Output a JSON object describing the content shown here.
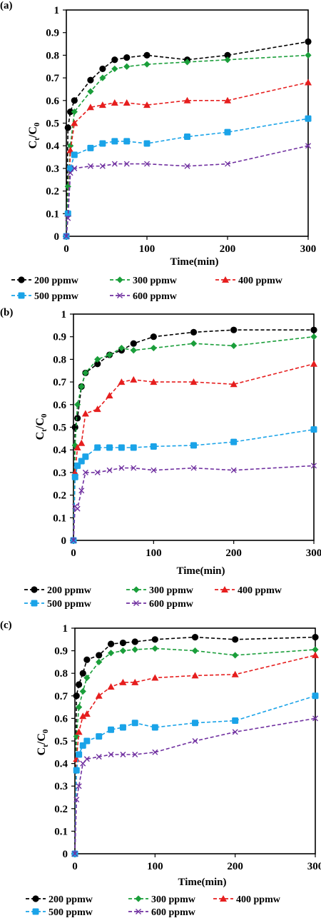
{
  "figure": {
    "panels": [
      {
        "label": "(a)"
      },
      {
        "label": "(b)"
      },
      {
        "label": "(c)"
      }
    ]
  },
  "series_style": [
    {
      "name": "200 ppmw",
      "color": "#000000",
      "marker": "circle"
    },
    {
      "name": "300 ppmw",
      "color": "#1a9e3a",
      "marker": "diamond"
    },
    {
      "name": "400 ppmw",
      "color": "#e61e1e",
      "marker": "triangle"
    },
    {
      "name": "500 ppmw",
      "color": "#1aa3e8",
      "marker": "square-round"
    },
    {
      "name": "600 ppmw",
      "color": "#7030a0",
      "marker": "x"
    }
  ],
  "chart_data": [
    {
      "type": "line",
      "title": "(a)",
      "xlabel": "Time(min)",
      "ylabel": "Ct/C0",
      "xlim": [
        0,
        300
      ],
      "ylim": [
        0,
        1
      ],
      "xticks": [
        0,
        100,
        200,
        300
      ],
      "yticks": [
        0,
        0.1,
        0.2,
        0.3,
        0.4,
        0.5,
        0.6,
        0.7,
        0.8,
        0.9,
        1
      ],
      "grid": false,
      "legend_position": "bottom",
      "series": [
        {
          "name": "200 ppmw",
          "x": [
            0,
            2,
            5,
            10,
            30,
            45,
            60,
            75,
            100,
            150,
            200,
            300
          ],
          "y": [
            0,
            0.48,
            0.55,
            0.6,
            0.69,
            0.74,
            0.78,
            0.79,
            0.8,
            0.78,
            0.8,
            0.86
          ]
        },
        {
          "name": "300 ppmw",
          "x": [
            0,
            2,
            5,
            10,
            30,
            45,
            60,
            75,
            100,
            150,
            200,
            300
          ],
          "y": [
            0,
            0.22,
            0.4,
            0.55,
            0.64,
            0.7,
            0.74,
            0.75,
            0.76,
            0.77,
            0.78,
            0.8
          ]
        },
        {
          "name": "400 ppmw",
          "x": [
            0,
            2,
            5,
            10,
            30,
            45,
            60,
            75,
            100,
            150,
            200,
            300
          ],
          "y": [
            0,
            0.1,
            0.38,
            0.5,
            0.57,
            0.58,
            0.59,
            0.59,
            0.58,
            0.6,
            0.6,
            0.68
          ]
        },
        {
          "name": "500 ppmw",
          "x": [
            0,
            2,
            5,
            10,
            30,
            45,
            60,
            75,
            100,
            150,
            200,
            300
          ],
          "y": [
            0,
            0.1,
            0.3,
            0.36,
            0.39,
            0.41,
            0.42,
            0.42,
            0.41,
            0.44,
            0.46,
            0.52
          ]
        },
        {
          "name": "600 ppmw",
          "x": [
            0,
            2,
            5,
            10,
            30,
            45,
            60,
            75,
            100,
            150,
            200,
            300
          ],
          "y": [
            0,
            0.08,
            0.28,
            0.3,
            0.31,
            0.31,
            0.32,
            0.32,
            0.32,
            0.31,
            0.32,
            0.4
          ]
        }
      ]
    },
    {
      "type": "line",
      "title": "(b)",
      "xlabel": "Time(min)",
      "ylabel": "Ct/C0",
      "xlim": [
        0,
        300
      ],
      "ylim": [
        0,
        1
      ],
      "xticks": [
        0,
        100,
        200,
        300
      ],
      "yticks": [
        0,
        0.1,
        0.2,
        0.3,
        0.4,
        0.5,
        0.6,
        0.7,
        0.8,
        0.9,
        1
      ],
      "grid": false,
      "legend_position": "bottom",
      "series": [
        {
          "name": "200 ppmw",
          "x": [
            0,
            2,
            5,
            10,
            15,
            30,
            45,
            60,
            75,
            100,
            150,
            200,
            300
          ],
          "y": [
            0,
            0.5,
            0.54,
            0.68,
            0.74,
            0.78,
            0.82,
            0.84,
            0.87,
            0.9,
            0.92,
            0.93,
            0.93
          ]
        },
        {
          "name": "300 ppmw",
          "x": [
            0,
            2,
            5,
            10,
            15,
            30,
            45,
            60,
            75,
            100,
            150,
            200,
            300
          ],
          "y": [
            0,
            0.42,
            0.6,
            0.68,
            0.74,
            0.8,
            0.82,
            0.85,
            0.84,
            0.85,
            0.87,
            0.86,
            0.9
          ]
        },
        {
          "name": "400 ppmw",
          "x": [
            0,
            2,
            5,
            10,
            15,
            30,
            45,
            60,
            75,
            100,
            150,
            200,
            300
          ],
          "y": [
            0,
            0.3,
            0.41,
            0.43,
            0.56,
            0.58,
            0.64,
            0.7,
            0.71,
            0.7,
            0.7,
            0.69,
            0.78
          ]
        },
        {
          "name": "500 ppmw",
          "x": [
            0,
            2,
            5,
            10,
            15,
            30,
            45,
            60,
            75,
            100,
            150,
            200,
            300
          ],
          "y": [
            0,
            0.28,
            0.33,
            0.35,
            0.37,
            0.41,
            0.41,
            0.41,
            0.41,
            0.415,
            0.42,
            0.435,
            0.49
          ]
        },
        {
          "name": "600 ppmw",
          "x": [
            0,
            2,
            5,
            10,
            15,
            30,
            45,
            60,
            75,
            100,
            150,
            200,
            300
          ],
          "y": [
            0,
            0.15,
            0.14,
            0.22,
            0.3,
            0.3,
            0.31,
            0.32,
            0.32,
            0.31,
            0.32,
            0.31,
            0.33
          ]
        }
      ]
    },
    {
      "type": "line",
      "title": "(c)",
      "xlabel": "Time(min)",
      "ylabel": "Ct/C0",
      "xlim": [
        0,
        300
      ],
      "ylim": [
        0,
        1
      ],
      "xticks": [
        0,
        100,
        200,
        300
      ],
      "yticks": [
        0,
        0.1,
        0.2,
        0.3,
        0.4,
        0.5,
        0.6,
        0.7,
        0.8,
        0.9,
        1
      ],
      "grid": false,
      "legend_position": "bottom",
      "series": [
        {
          "name": "200 ppmw",
          "x": [
            0,
            2,
            5,
            10,
            15,
            30,
            45,
            60,
            75,
            100,
            150,
            200,
            300
          ],
          "y": [
            0,
            0.7,
            0.75,
            0.8,
            0.86,
            0.88,
            0.93,
            0.935,
            0.94,
            0.95,
            0.96,
            0.95,
            0.96
          ]
        },
        {
          "name": "300 ppmw",
          "x": [
            0,
            2,
            5,
            10,
            15,
            30,
            45,
            60,
            75,
            100,
            150,
            200,
            300
          ],
          "y": [
            0,
            0.52,
            0.65,
            0.72,
            0.78,
            0.85,
            0.89,
            0.9,
            0.905,
            0.91,
            0.9,
            0.88,
            0.905
          ]
        },
        {
          "name": "400 ppmw",
          "x": [
            0,
            2,
            5,
            10,
            15,
            30,
            45,
            60,
            75,
            100,
            150,
            200,
            300
          ],
          "y": [
            0,
            0.42,
            0.54,
            0.61,
            0.62,
            0.7,
            0.74,
            0.76,
            0.76,
            0.78,
            0.79,
            0.795,
            0.88
          ]
        },
        {
          "name": "500 ppmw",
          "x": [
            0,
            2,
            5,
            10,
            15,
            30,
            45,
            60,
            75,
            100,
            150,
            200,
            300
          ],
          "y": [
            0,
            0.37,
            0.44,
            0.48,
            0.5,
            0.52,
            0.55,
            0.56,
            0.58,
            0.56,
            0.58,
            0.59,
            0.7
          ]
        },
        {
          "name": "600 ppmw",
          "x": [
            0,
            2,
            5,
            10,
            15,
            30,
            45,
            60,
            75,
            100,
            150,
            200,
            300
          ],
          "y": [
            0,
            0.24,
            0.3,
            0.4,
            0.42,
            0.43,
            0.44,
            0.44,
            0.44,
            0.45,
            0.5,
            0.54,
            0.6
          ]
        }
      ]
    }
  ]
}
